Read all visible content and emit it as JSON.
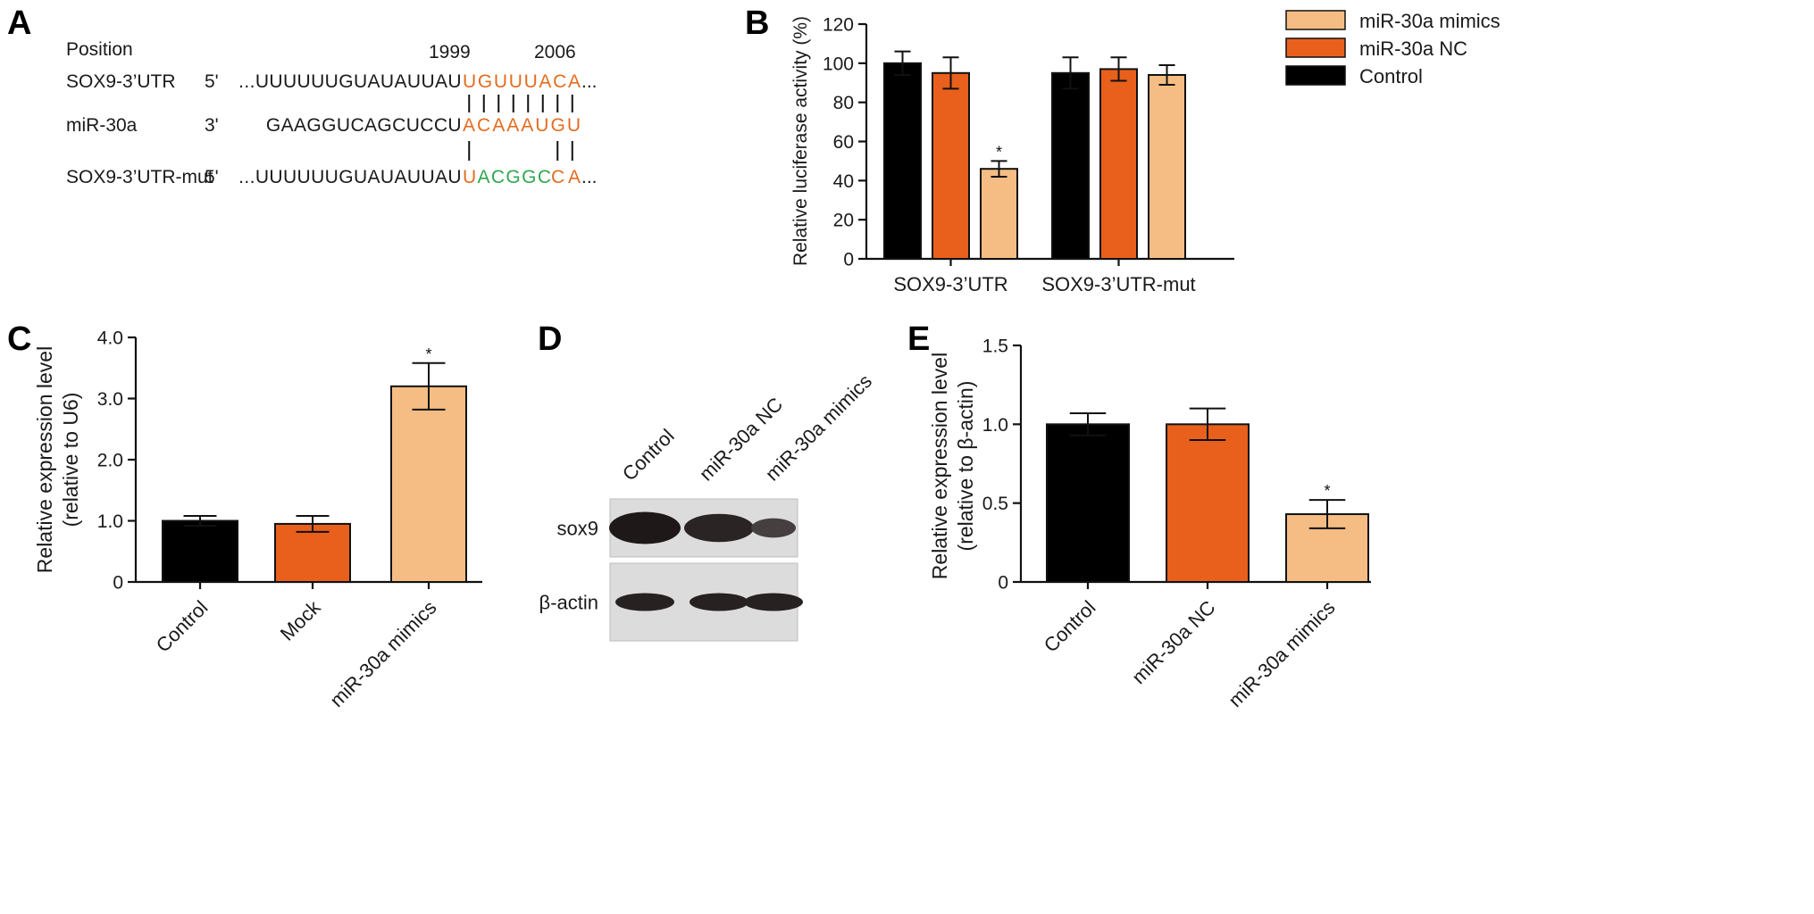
{
  "panels": {
    "A": "A",
    "B": "B",
    "C": "C",
    "D": "D",
    "E": "E"
  },
  "colors": {
    "control": "#000000",
    "nc": "#e8601c",
    "mimics": "#f5bd83",
    "seq_orange": "#e46c1f",
    "seq_green": "#2fa84f",
    "text": "#1a1a1a"
  },
  "panel_a": {
    "position_label": "Position",
    "pos_start": "1999",
    "pos_end": "2006",
    "rows": [
      {
        "name": "SOX9-3’UTR",
        "end": "5'",
        "prefix": "...UUUUUUGUAUAUUAU",
        "segments": [
          {
            "text": "UGUUUACA",
            "color": "orange"
          }
        ],
        "suffix": "..."
      },
      {
        "name": "miR-30a",
        "end": "3'",
        "prefix": "GAAGGUCAGCUCCU",
        "segments": [
          {
            "text": "ACAAAUGU",
            "color": "orange"
          }
        ],
        "suffix": ""
      },
      {
        "name": "SOX9-3’UTR-mut",
        "end": "5'",
        "prefix": "...UUUUUUGUAUAUUAU",
        "segments": [
          {
            "text": "U",
            "color": "orange"
          },
          {
            "text": "ACGGC",
            "color": "green"
          },
          {
            "text": "CA",
            "color": "orange"
          }
        ],
        "suffix": "..."
      }
    ]
  },
  "chart_data": [
    {
      "panel": "B",
      "type": "bar",
      "categories": [
        "SOX9-3’UTR",
        "SOX9-3’UTR-mut"
      ],
      "series": [
        {
          "name": "Control",
          "values": [
            100,
            95
          ],
          "errors": [
            6,
            8
          ],
          "color": "#000000"
        },
        {
          "name": "miR-30a NC",
          "values": [
            95,
            97
          ],
          "errors": [
            8,
            6
          ],
          "color": "#e8601c"
        },
        {
          "name": "miR-30a mimics",
          "values": [
            46,
            94
          ],
          "errors": [
            4,
            5
          ],
          "color": "#f5bd83"
        }
      ],
      "significance": [
        {
          "category": 0,
          "series": 2,
          "mark": "*"
        }
      ],
      "title": "",
      "xlabel": "",
      "ylabel": "Relative luciferase activity (%)",
      "ylim": [
        0,
        120
      ],
      "yticks": [
        0,
        20,
        40,
        60,
        80,
        100,
        120
      ],
      "ytick_labels": [
        "0",
        "20",
        "40",
        "60",
        "80",
        "100",
        "120"
      ],
      "legend": [
        "miR-30a mimics",
        "miR-30a NC",
        "Control"
      ],
      "legend_position": "top-right",
      "grid": false
    },
    {
      "panel": "C",
      "type": "bar",
      "categories": [
        "Control",
        "Mock",
        "miR-30a mimics"
      ],
      "values": [
        1.0,
        0.95,
        3.2
      ],
      "errors": [
        0.08,
        0.13,
        0.38
      ],
      "colors": [
        "#000000",
        "#e8601c",
        "#f5bd83"
      ],
      "significance": [
        {
          "index": 2,
          "mark": "*"
        }
      ],
      "title": "",
      "xlabel": "",
      "ylabel": "Relative expression level",
      "ylabel2": "(relative to U6)",
      "ylim": [
        0,
        4
      ],
      "yticks": [
        0,
        1,
        2,
        3,
        4
      ],
      "ytick_labels": [
        "0",
        "1.0",
        "2.0",
        "3.0",
        "4.0"
      ],
      "grid": false
    },
    {
      "panel": "E",
      "type": "bar",
      "categories": [
        "Control",
        "miR-30a NC",
        "miR-30a mimics"
      ],
      "values": [
        1.0,
        1.0,
        0.43
      ],
      "errors": [
        0.07,
        0.1,
        0.09
      ],
      "colors": [
        "#000000",
        "#e8601c",
        "#f5bd83"
      ],
      "significance": [
        {
          "index": 2,
          "mark": "*"
        }
      ],
      "title": "",
      "xlabel": "",
      "ylabel": "Relative expression level",
      "ylabel2": "(relative to β-actin)",
      "ylim": [
        0,
        1.5
      ],
      "yticks": [
        0,
        0.5,
        1.0,
        1.5
      ],
      "ytick_labels": [
        "0",
        "0.5",
        "1.0",
        "1.5"
      ],
      "grid": false
    }
  ],
  "blot": {
    "lanes": [
      "Control",
      "miR-30a NC",
      "miR-30a mimics"
    ],
    "rows": [
      {
        "label": "sox9",
        "intensity": [
          1.0,
          0.8,
          0.35
        ]
      },
      {
        "label": "β-actin",
        "intensity": [
          0.85,
          0.85,
          0.85
        ]
      }
    ]
  }
}
